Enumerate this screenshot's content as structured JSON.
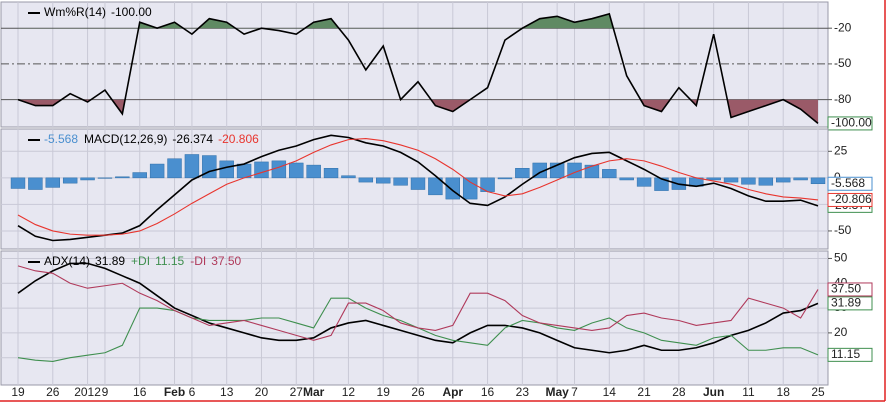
{
  "chart_data": {
    "type": "stock-indicators",
    "categories": [
      "19",
      null,
      "26",
      null,
      "2012",
      "9",
      null,
      "16",
      null,
      "Feb",
      "6",
      null,
      "13",
      null,
      "20",
      null,
      "27",
      "Mar",
      null,
      "12",
      null,
      "19",
      null,
      "26",
      null,
      "Apr",
      null,
      "16",
      null,
      "23",
      null,
      "May",
      "7",
      null,
      "14",
      null,
      "21",
      null,
      "28",
      null,
      "Jun",
      null,
      "11",
      null,
      "18",
      null,
      "25"
    ],
    "panels": [
      {
        "type": "williams-r",
        "ylim": [
          -103,
          2
        ],
        "yticks": [
          -20,
          -50,
          -80
        ],
        "upper_band": -20,
        "lower_band": -80,
        "upper_color": "#5f8a63",
        "lower_color": "#9a5a68",
        "series": [
          {
            "type": "line",
            "name": "Wm%R(14)",
            "color": "#000000",
            "last_label": "-100.00",
            "values": [
              -80,
              -85,
              -85,
              -75,
              -82,
              -72,
              -92,
              -15,
              -20,
              -15,
              -25,
              -12,
              -15,
              -25,
              -20,
              -22,
              -25,
              -15,
              -12,
              -30,
              -55,
              -35,
              -80,
              -65,
              -85,
              -90,
              -80,
              -70,
              -30,
              -20,
              -12,
              -10,
              -15,
              -12,
              -8,
              -60,
              -85,
              -90,
              -70,
              -85,
              -25,
              -95,
              -90,
              -85,
              -80,
              -88,
              -100
            ]
          }
        ]
      },
      {
        "type": "macd",
        "ylim": [
          -67,
          46
        ],
        "yticks": [
          25,
          0,
          -25,
          -50
        ],
        "series": [
          {
            "type": "bar",
            "color": "#4a8fcf",
            "last_label": "-5.568",
            "values": [
              -10,
              -11,
              -9,
              -5,
              -2,
              0,
              1,
              5,
              13,
              18,
              22,
              21,
              16,
              13,
              15,
              16,
              14,
              12,
              9,
              2,
              -4,
              -5,
              -7,
              -11,
              -16,
              -20,
              -20,
              -13,
              -1,
              9,
              14,
              14,
              14,
              12,
              8,
              -2,
              -8,
              -12,
              -11,
              -8,
              -2,
              -4,
              -6,
              -7,
              -4,
              -2,
              -5.568
            ]
          },
          {
            "type": "line",
            "name": "MACD(12,26,9)",
            "color": "#000000",
            "last_label": "-26.374",
            "values": [
              -45,
              -55,
              -59,
              -58,
              -56,
              -54,
              -52,
              -45,
              -30,
              -16,
              -2,
              6,
              10,
              13,
              20,
              26,
              30,
              36,
              40,
              38,
              33,
              30,
              24,
              15,
              2,
              -12,
              -24,
              -26,
              -18,
              -6,
              5,
              12,
              19,
              23,
              24,
              16,
              8,
              -1,
              -6,
              -8,
              -5,
              -10,
              -17,
              -22,
              -22,
              -21,
              -26.374
            ]
          },
          {
            "type": "line",
            "color": "#e8352e",
            "last_label": "-20.806",
            "values": [
              -35,
              -44,
              -50,
              -53,
              -54,
              -54,
              -53,
              -50,
              -43,
              -34,
              -24,
              -15,
              -6,
              0,
              5,
              10,
              16,
              24,
              31,
              36,
              37,
              35,
              31,
              26,
              18,
              8,
              -4,
              -13,
              -17,
              -15,
              -9,
              -2,
              5,
              11,
              16,
              18,
              16,
              11,
              5,
              0,
              -3,
              -6,
              -11,
              -15,
              -18,
              -19,
              -20.806
            ]
          }
        ]
      },
      {
        "type": "adx",
        "ylim": [
          -1,
          53
        ],
        "yticks": [
          10,
          20,
          30,
          40,
          50
        ],
        "series": [
          {
            "type": "line",
            "name": "ADX(14)",
            "color": "#000000",
            "last_label": "31.89",
            "values": [
              36,
              41,
              45,
              48,
              48,
              46,
              43,
              40,
              35,
              30,
              27,
              24,
              22,
              20,
              18,
              17,
              17,
              18,
              22,
              24,
              25,
              23,
              21,
              19,
              17,
              16,
              20,
              23,
              23,
              22,
              20,
              17,
              14,
              13,
              12,
              13,
              15,
              13,
              13,
              14,
              16,
              19,
              21,
              24,
              28,
              29,
              31.89
            ]
          },
          {
            "type": "line",
            "name": "+DI",
            "color": "#3f8f4f",
            "last_label": "11.15",
            "values": [
              10,
              9,
              8.5,
              10,
              11,
              12,
              15,
              30,
              30,
              29,
              26,
              25,
              25,
              25,
              26,
              26,
              24,
              22,
              34,
              34,
              30,
              27,
              25,
              22,
              19,
              17,
              16,
              15,
              22,
              25,
              24,
              22,
              21,
              24,
              26,
              22,
              20,
              17,
              16,
              15,
              18,
              19,
              13,
              13,
              14,
              14,
              11.15
            ]
          },
          {
            "type": "line",
            "name": "-DI",
            "color": "#b03a5b",
            "last_label": "37.50",
            "values": [
              47,
              45,
              44,
              40,
              38,
              39,
              40,
              36,
              33,
              29,
              26,
              23,
              24,
              25,
              23,
              21,
              19,
              17,
              19,
              32,
              32,
              29,
              24,
              22,
              21,
              23,
              36,
              36,
              33,
              27,
              24,
              23,
              22,
              21,
              22,
              27,
              28,
              26,
              25,
              23,
              24,
              25,
              34,
              32,
              30,
              26,
              37.5
            ]
          }
        ]
      }
    ]
  }
}
